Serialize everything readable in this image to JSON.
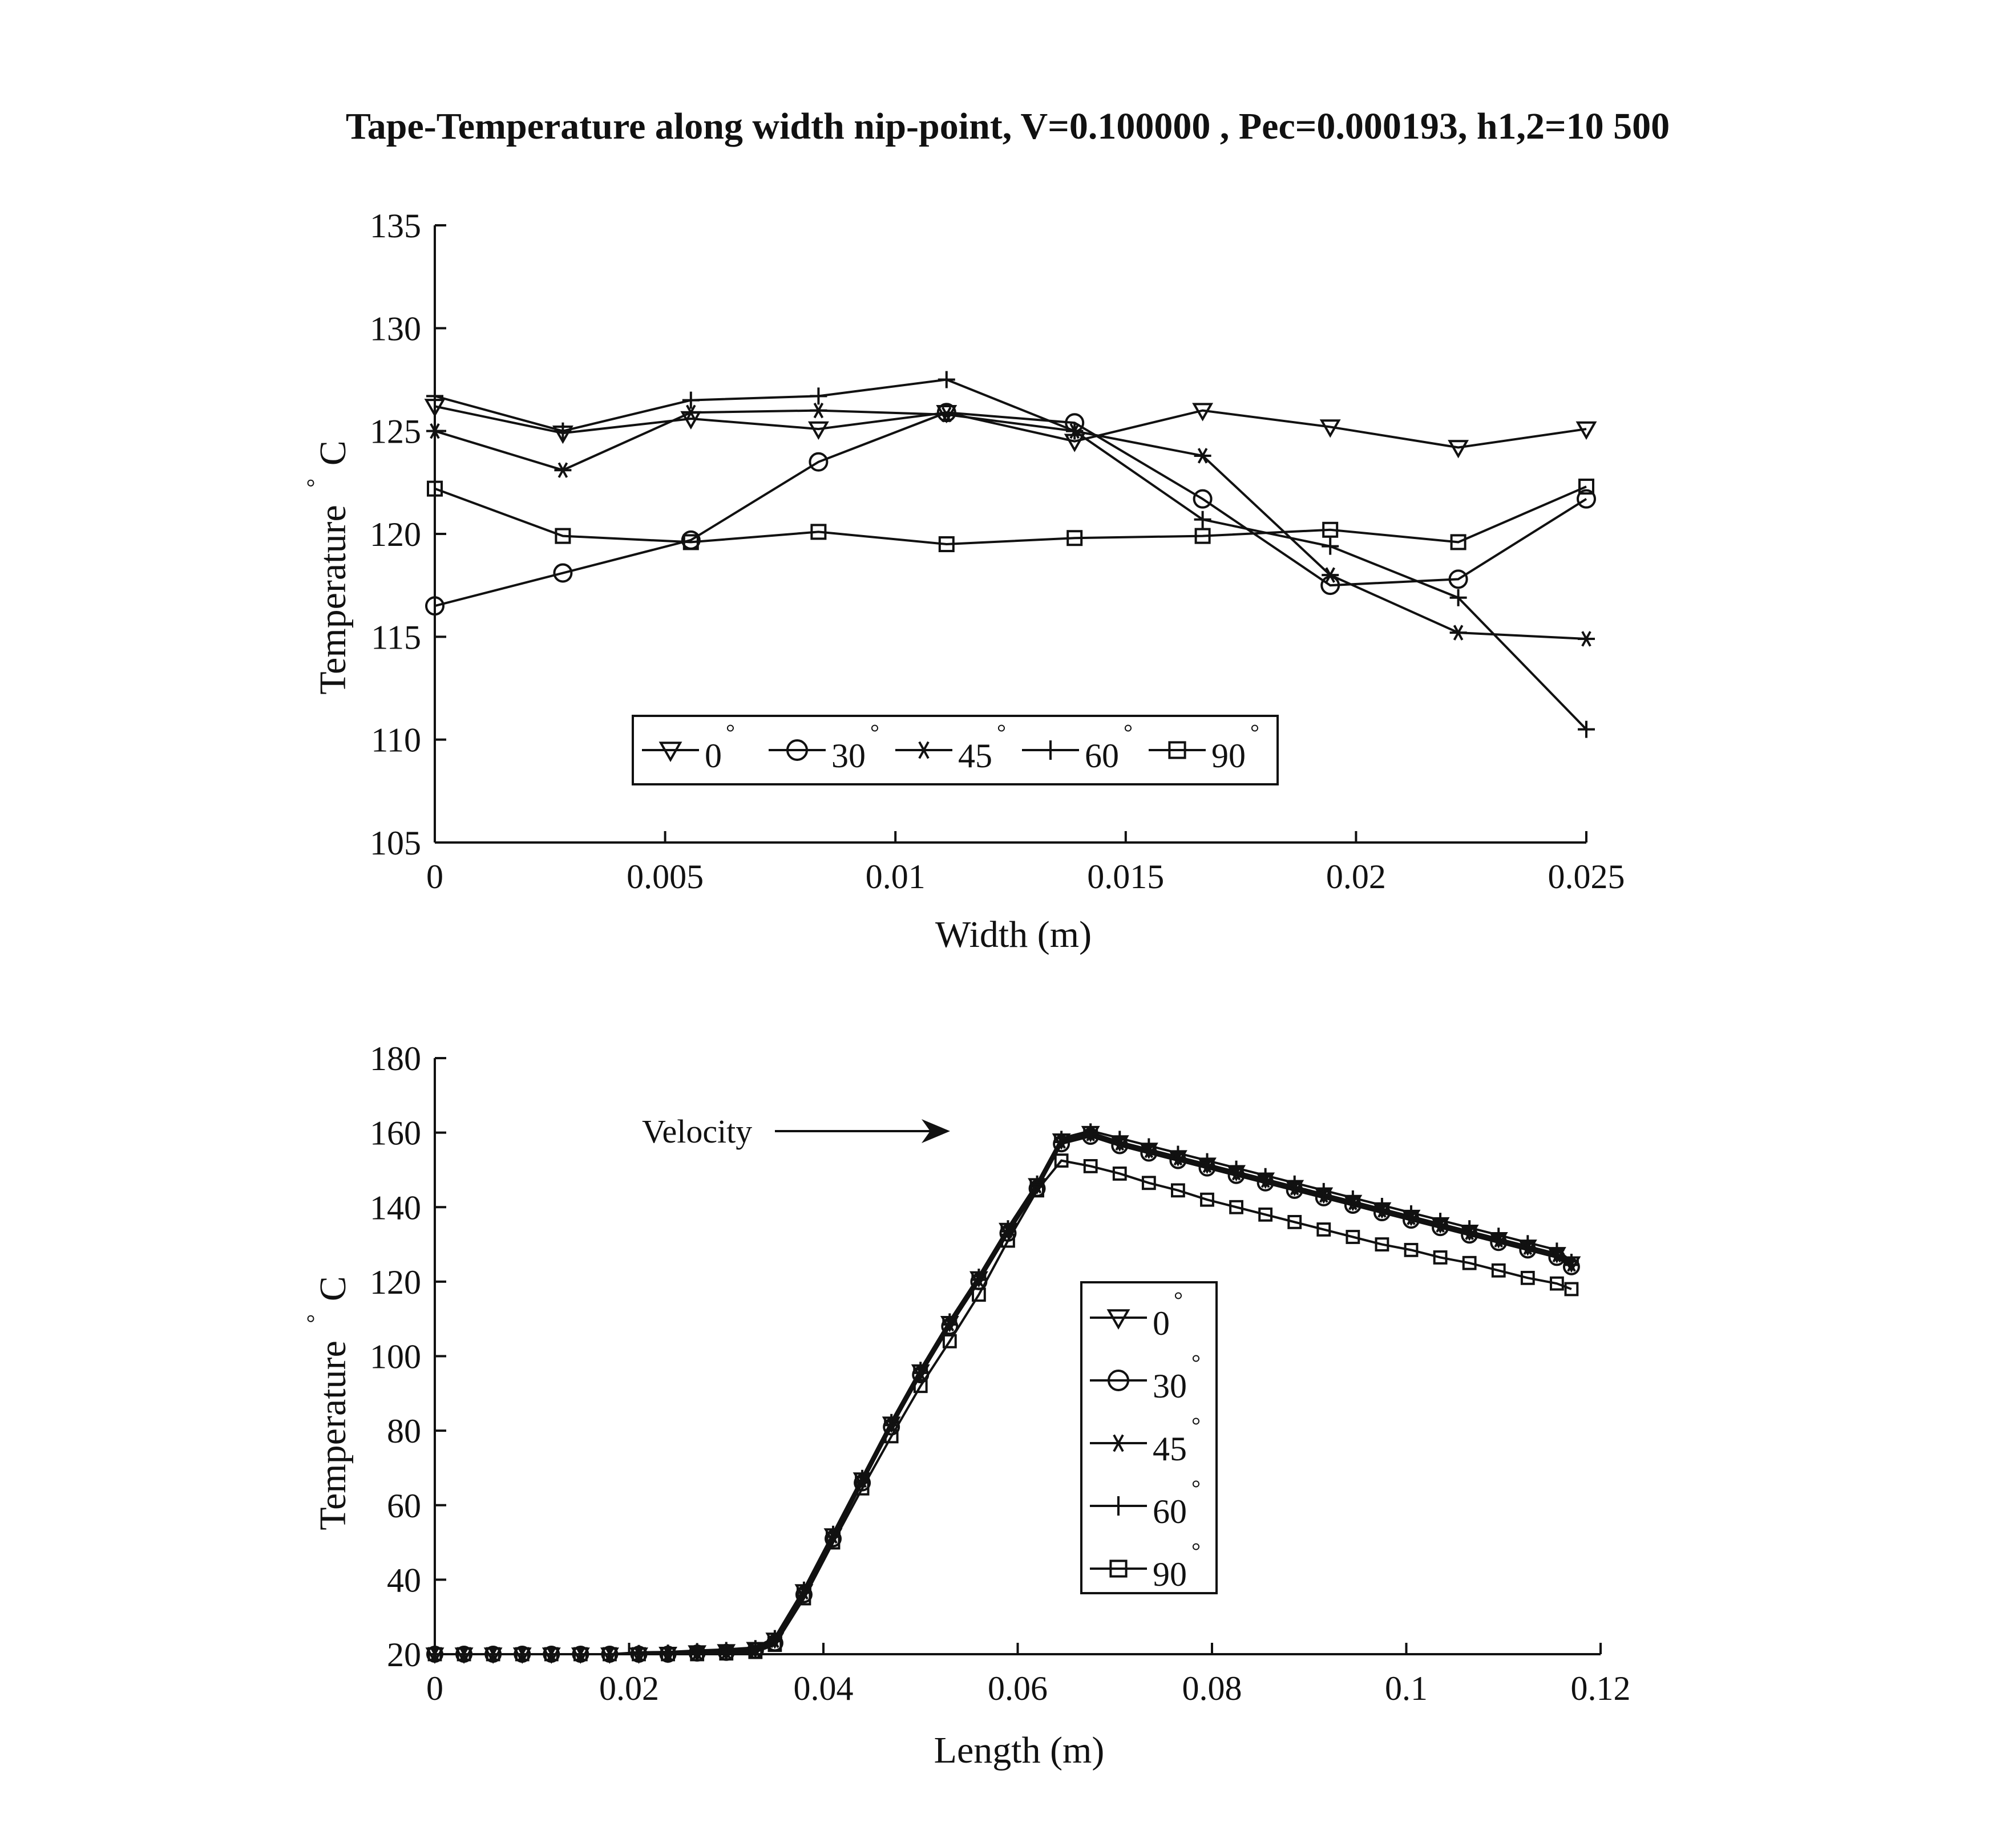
{
  "figure_title": "Tape-Temperature along width nip-point, V=0.100000 , Pec=0.000193, h1,2=10 500",
  "chart_data": [
    {
      "type": "line",
      "xlabel": "Width (m)",
      "ylabel": "Temperature",
      "ylabel_unit": "C",
      "xlim": [
        0,
        0.025
      ],
      "ylim": [
        105,
        135
      ],
      "xticks": [
        "0",
        "0.005",
        "0.01",
        "0.015",
        "0.02",
        "0.025"
      ],
      "yticks": [
        "105",
        "110",
        "115",
        "120",
        "125",
        "130",
        "135"
      ],
      "legend_position": "bottom-center, horizontal",
      "x": [
        0,
        0.00278,
        0.00556,
        0.00833,
        0.01111,
        0.01389,
        0.01667,
        0.01944,
        0.02222,
        0.025
      ],
      "series": [
        {
          "name": "0",
          "marker": "triangle-down",
          "values": [
            126.2,
            124.9,
            125.6,
            125.1,
            125.9,
            124.5,
            126.0,
            125.2,
            124.2,
            125.1
          ]
        },
        {
          "name": "30",
          "marker": "circle",
          "values": [
            116.5,
            118.1,
            119.7,
            123.5,
            125.9,
            125.4,
            121.7,
            117.5,
            117.8,
            121.7
          ]
        },
        {
          "name": "45",
          "marker": "asterisk",
          "values": [
            125.0,
            123.1,
            125.9,
            126.0,
            125.8,
            125.0,
            123.8,
            118.0,
            115.2,
            114.9
          ]
        },
        {
          "name": "60",
          "marker": "plus",
          "values": [
            126.7,
            125.0,
            126.5,
            126.7,
            127.5,
            125.0,
            120.7,
            119.4,
            116.9,
            110.5
          ]
        },
        {
          "name": "90",
          "marker": "square",
          "values": [
            122.2,
            119.9,
            119.6,
            120.1,
            119.5,
            119.8,
            119.9,
            120.2,
            119.6,
            122.3
          ]
        }
      ]
    },
    {
      "type": "line",
      "xlabel": "Length (m)",
      "ylabel": "Temperature",
      "ylabel_unit": "C",
      "xlim": [
        0,
        0.12
      ],
      "ylim": [
        20,
        180
      ],
      "xticks": [
        "0",
        "0.02",
        "0.04",
        "0.06",
        "0.08",
        "0.1",
        "0.12"
      ],
      "yticks": [
        "20",
        "40",
        "60",
        "80",
        "100",
        "120",
        "140",
        "160",
        "180"
      ],
      "annotation": "Velocity",
      "legend_position": "center, vertical",
      "x": [
        0,
        0.003,
        0.006,
        0.009,
        0.012,
        0.015,
        0.018,
        0.021,
        0.024,
        0.027,
        0.03,
        0.033,
        0.035,
        0.038,
        0.041,
        0.044,
        0.047,
        0.05,
        0.053,
        0.056,
        0.059,
        0.062,
        0.0645,
        0.0675,
        0.0705,
        0.0735,
        0.0765,
        0.0795,
        0.0825,
        0.0855,
        0.0885,
        0.0915,
        0.0945,
        0.0975,
        0.1005,
        0.1035,
        0.1065,
        0.1095,
        0.1125,
        0.1155,
        0.117
      ],
      "series": [
        {
          "name": "0",
          "marker": "triangle-down",
          "values": [
            20,
            20,
            20,
            20,
            20,
            20,
            20,
            20,
            20.2,
            20.6,
            20.9,
            21.5,
            24,
            37,
            52,
            67,
            82,
            96,
            109,
            121,
            134,
            146,
            158,
            160,
            157.5,
            155.5,
            153.5,
            151.5,
            149.5,
            147.5,
            145.5,
            143.5,
            141.5,
            139.5,
            137.5,
            135.5,
            133.5,
            131.5,
            129.5,
            127.5,
            125
          ]
        },
        {
          "name": "30",
          "marker": "circle",
          "values": [
            20,
            20,
            20,
            20,
            20,
            20,
            20,
            20,
            20,
            20.3,
            20.5,
            21,
            23,
            36,
            51,
            66,
            81,
            95,
            108,
            120,
            133,
            145,
            157,
            159,
            156.5,
            154.5,
            152.5,
            150.5,
            148.5,
            146.5,
            144.5,
            142.5,
            140.5,
            138.5,
            136.5,
            134.5,
            132.5,
            130.5,
            128.5,
            126.5,
            124
          ]
        },
        {
          "name": "45",
          "marker": "asterisk",
          "values": [
            20,
            20,
            20,
            20,
            20,
            20,
            20,
            20,
            20.1,
            20.5,
            20.7,
            21.2,
            23.5,
            36.5,
            51.5,
            66.5,
            81.5,
            95.5,
            108.5,
            120.5,
            133.5,
            145.5,
            157.5,
            159.5,
            157,
            155,
            153,
            151,
            149,
            147,
            145,
            143,
            141,
            139,
            137,
            135,
            133,
            131,
            129,
            127,
            124.5
          ]
        },
        {
          "name": "60",
          "marker": "plus",
          "values": [
            20,
            20,
            20,
            20,
            20,
            20,
            20,
            20.5,
            20.6,
            21,
            21.3,
            21.8,
            24.5,
            37.5,
            52.5,
            67.5,
            82.5,
            96.5,
            109.5,
            121.5,
            134.5,
            146.5,
            158.5,
            160.5,
            158.5,
            156.5,
            154.5,
            152.5,
            150.5,
            148.5,
            146.5,
            144.5,
            142.5,
            140.5,
            138.5,
            136.5,
            134.5,
            132.5,
            130.5,
            128.5,
            125.5
          ]
        },
        {
          "name": "90",
          "marker": "square",
          "values": [
            20,
            20,
            20,
            20,
            20,
            20,
            20,
            20,
            20,
            20,
            20.2,
            20.6,
            22.5,
            35,
            50,
            64.5,
            78.5,
            92,
            104,
            116.5,
            131,
            144.5,
            152.5,
            151,
            149,
            146.5,
            144.5,
            142,
            140,
            138,
            136,
            134,
            132,
            130,
            128.5,
            126.5,
            125,
            123,
            121,
            119.5,
            118
          ]
        }
      ]
    }
  ]
}
